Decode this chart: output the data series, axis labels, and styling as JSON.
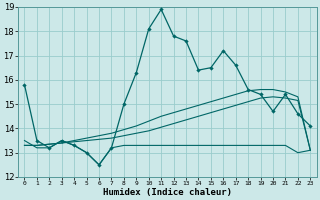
{
  "title": "",
  "xlabel": "Humidex (Indice chaleur)",
  "xlim": [
    -0.5,
    23.5
  ],
  "ylim": [
    12,
    19
  ],
  "yticks": [
    12,
    13,
    14,
    15,
    16,
    17,
    18,
    19
  ],
  "xticks": [
    0,
    1,
    2,
    3,
    4,
    5,
    6,
    7,
    8,
    9,
    10,
    11,
    12,
    13,
    14,
    15,
    16,
    17,
    18,
    19,
    20,
    21,
    22,
    23
  ],
  "bg_color": "#cce8e8",
  "grid_color": "#99cccc",
  "line_color": "#006666",
  "line1_y": [
    15.8,
    13.5,
    13.2,
    13.5,
    13.3,
    13.0,
    12.5,
    13.2,
    15.0,
    16.3,
    18.1,
    18.9,
    17.8,
    17.6,
    16.4,
    16.5,
    17.2,
    16.6,
    15.6,
    15.4,
    14.7,
    15.4,
    14.6,
    14.1
  ],
  "line2_y": [
    13.5,
    13.2,
    13.2,
    13.5,
    13.3,
    13.0,
    12.5,
    13.2,
    13.3,
    13.3,
    13.3,
    13.3,
    13.3,
    13.3,
    13.3,
    13.3,
    13.3,
    13.3,
    13.3,
    13.3,
    13.3,
    13.3,
    13.0,
    13.1
  ],
  "line3_y": [
    13.3,
    13.3,
    13.35,
    13.4,
    13.45,
    13.5,
    13.55,
    13.6,
    13.7,
    13.8,
    13.9,
    14.05,
    14.2,
    14.35,
    14.5,
    14.65,
    14.8,
    14.95,
    15.1,
    15.25,
    15.3,
    15.25,
    15.15,
    13.1
  ],
  "line4_y": [
    13.3,
    13.3,
    13.35,
    13.4,
    13.5,
    13.6,
    13.7,
    13.8,
    13.95,
    14.1,
    14.3,
    14.5,
    14.65,
    14.8,
    14.95,
    15.1,
    15.25,
    15.4,
    15.55,
    15.6,
    15.6,
    15.5,
    15.3,
    13.1
  ]
}
